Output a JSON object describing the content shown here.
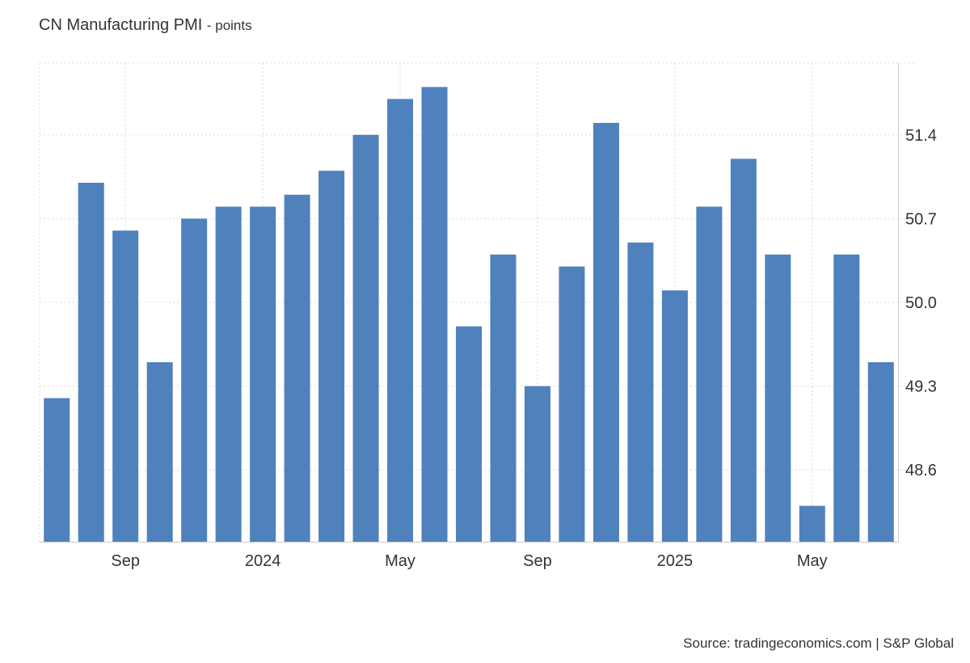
{
  "header": {
    "title": "CN Manufacturing PMI",
    "subtitle": "- points"
  },
  "footer": {
    "source": "Source: tradingeconomics.com | S&P Global"
  },
  "chart_data": {
    "type": "bar",
    "bar_color": "#4f81bd",
    "grid": true,
    "ylim": [
      48.0,
      52.0
    ],
    "y_ticks": [
      48.6,
      49.3,
      50.0,
      50.7,
      51.4
    ],
    "y_tick_labels": [
      "48.6",
      "49.3",
      "50.0",
      "50.7",
      "51.4"
    ],
    "x_tick_labels": [
      {
        "index": 2,
        "label": "Sep"
      },
      {
        "index": 6,
        "label": "2024"
      },
      {
        "index": 10,
        "label": "May"
      },
      {
        "index": 14,
        "label": "Sep"
      },
      {
        "index": 18,
        "label": "2025"
      },
      {
        "index": 22,
        "label": "May"
      }
    ],
    "categories": [
      "2023-07",
      "2023-08",
      "2023-09",
      "2023-10",
      "2023-11",
      "2023-12",
      "2024-01",
      "2024-02",
      "2024-03",
      "2024-04",
      "2024-05",
      "2024-06",
      "2024-07",
      "2024-08",
      "2024-09",
      "2024-10",
      "2024-11",
      "2024-12",
      "2025-01",
      "2025-02",
      "2025-03",
      "2025-04",
      "2025-05",
      "2025-06",
      "2025-07"
    ],
    "values": [
      49.2,
      51.0,
      50.6,
      49.5,
      50.7,
      50.8,
      50.8,
      50.9,
      51.1,
      51.4,
      51.7,
      51.8,
      49.8,
      50.4,
      49.3,
      50.3,
      51.5,
      50.5,
      50.1,
      50.8,
      51.2,
      50.4,
      48.3,
      50.4,
      49.5
    ],
    "title": "CN Manufacturing PMI",
    "subtitle": "points",
    "xlabel": "",
    "ylabel": ""
  }
}
